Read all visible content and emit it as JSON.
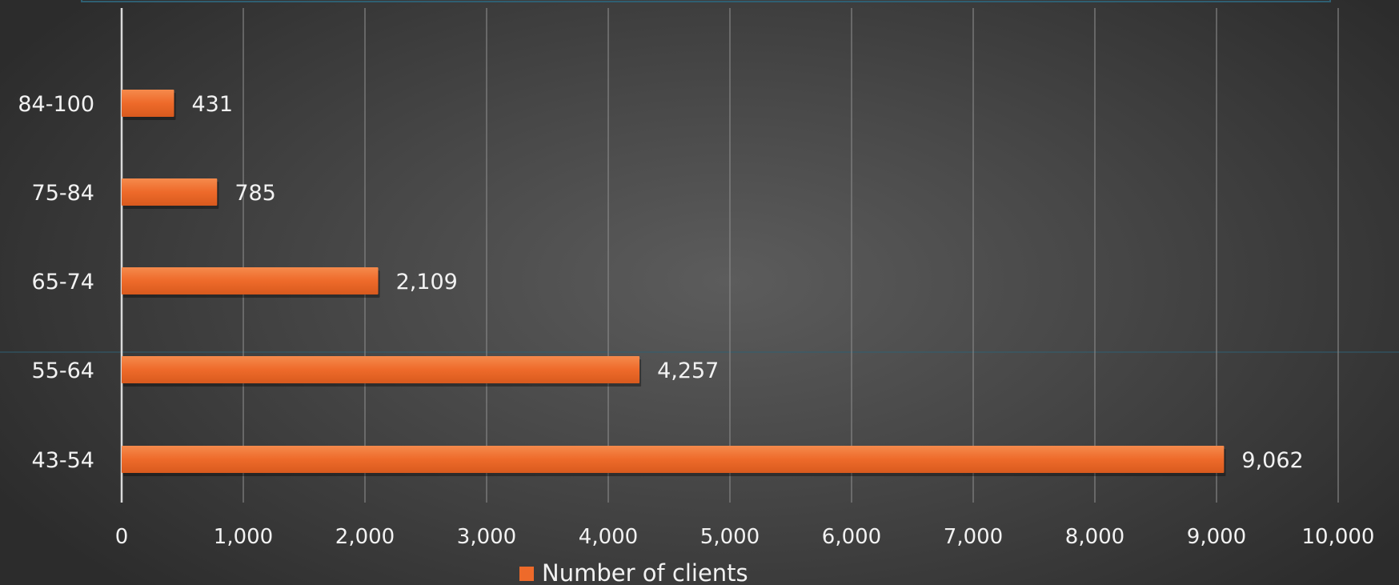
{
  "chart_data": {
    "type": "bar",
    "orientation": "horizontal",
    "categories": [
      "84-100",
      "75-84",
      "65-74",
      "55-64",
      "43-54"
    ],
    "series": [
      {
        "name": "Number of clients",
        "values": [
          431,
          785,
          2109,
          4257,
          9062
        ],
        "value_labels": [
          "431",
          "785",
          "2,109",
          "4,257",
          "9,062"
        ],
        "color": "#ee6a2a"
      }
    ],
    "x_ticks": [
      "0",
      "1,000",
      "2,000",
      "3,000",
      "4,000",
      "5,000",
      "6,000",
      "7,000",
      "8,000",
      "9,000",
      "10,000"
    ],
    "xlim": [
      0,
      10000
    ],
    "grid": "vertical",
    "legend": "bottom-center",
    "title": "",
    "xlabel": "",
    "ylabel": ""
  },
  "colors": {
    "bar": "#ee6a2a",
    "bar_highlight": "#f58a4c",
    "text": "#f2f2f2",
    "gridline": "#8a8a8a",
    "axis": "#d9d9d9",
    "frame_accent": "#2f5f72"
  }
}
